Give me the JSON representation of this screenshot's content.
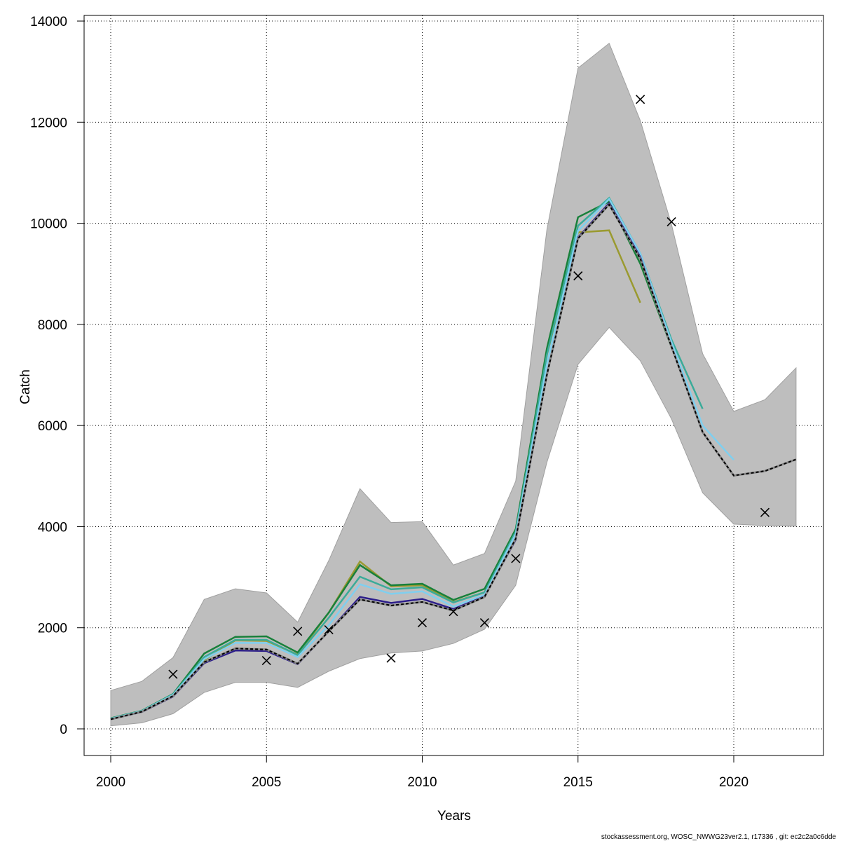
{
  "chart_data": {
    "type": "line",
    "title": "",
    "xlabel": "Years",
    "ylabel": "Catch",
    "xlim": [
      2000,
      2022
    ],
    "ylim": [
      0,
      14000
    ],
    "xticks": [
      2000,
      2005,
      2010,
      2015,
      2020
    ],
    "yticks": [
      0,
      2000,
      4000,
      6000,
      8000,
      10000,
      12000,
      14000
    ],
    "grid": true,
    "years": [
      2000,
      2001,
      2002,
      2003,
      2004,
      2005,
      2006,
      2007,
      2008,
      2009,
      2010,
      2011,
      2012,
      2013,
      2014,
      2015,
      2016,
      2017,
      2018,
      2019,
      2020,
      2021,
      2022
    ],
    "confidence_band": {
      "upper": [
        760,
        940,
        1410,
        2560,
        2770,
        2690,
        2110,
        3330,
        4750,
        4080,
        4100,
        3240,
        3470,
        4900,
        9870,
        13070,
        13560,
        12030,
        9980,
        7420,
        6280,
        6510,
        7140
      ],
      "lower": [
        60,
        120,
        300,
        720,
        920,
        920,
        820,
        1140,
        1390,
        1500,
        1540,
        1690,
        1970,
        2840,
        5270,
        7210,
        7940,
        7280,
        6130,
        4670,
        4050,
        4020,
        4010
      ],
      "color": "#bebebe"
    },
    "series": [
      {
        "name": "olive",
        "color": "#9a9a30",
        "values": [
          200,
          350,
          680,
          1360,
          1750,
          1740,
          1470,
          2300,
          3310,
          2820,
          2840,
          2510,
          2700,
          3900,
          7400,
          9820,
          9860,
          8430
        ]
      },
      {
        "name": "green",
        "color": "#18803a",
        "values": [
          210,
          360,
          690,
          1490,
          1820,
          1830,
          1510,
          2300,
          3240,
          2840,
          2870,
          2550,
          2770,
          3950,
          7520,
          10120,
          10430,
          9200,
          7550
        ]
      },
      {
        "name": "teal",
        "color": "#3aab99",
        "values": [
          205,
          355,
          685,
          1420,
          1760,
          1760,
          1460,
          2200,
          3010,
          2760,
          2800,
          2500,
          2700,
          3900,
          7400,
          9950,
          10500,
          9400,
          7700,
          6330
        ]
      },
      {
        "name": "lightblue",
        "color": "#7fcfef",
        "values": [
          200,
          350,
          670,
          1380,
          1700,
          1700,
          1420,
          2050,
          2860,
          2670,
          2720,
          2420,
          2650,
          3850,
          7200,
          9850,
          10480,
          9400,
          7650,
          6000,
          5320
        ]
      },
      {
        "name": "indigo",
        "color": "#2d1e8a",
        "values": [
          190,
          335,
          640,
          1300,
          1550,
          1540,
          1280,
          1930,
          2610,
          2490,
          2570,
          2370,
          2620,
          3740,
          7000,
          9720,
          10400,
          9330,
          7560,
          5870,
          5010,
          5100
        ]
      },
      {
        "name": "base",
        "color": "#000000",
        "dashed": true,
        "values": [
          190,
          340,
          650,
          1320,
          1590,
          1570,
          1290,
          1930,
          2560,
          2440,
          2510,
          2340,
          2610,
          3760,
          7000,
          9700,
          10370,
          9300,
          7560,
          5870,
          5010,
          5100,
          5330
        ]
      }
    ],
    "observed": {
      "marker": "x",
      "years": [
        2002,
        2005,
        2006,
        2007,
        2009,
        2010,
        2011,
        2012,
        2013,
        2015,
        2017,
        2018,
        2021
      ],
      "values": [
        1080,
        1350,
        1930,
        1960,
        1400,
        2100,
        2320,
        2100,
        3370,
        8960,
        12450,
        10030,
        4280
      ]
    }
  },
  "footer": "stockassessment.org, WOSC_NWWG23ver2.1, r17336 , git: ec2c2a0c6dde"
}
